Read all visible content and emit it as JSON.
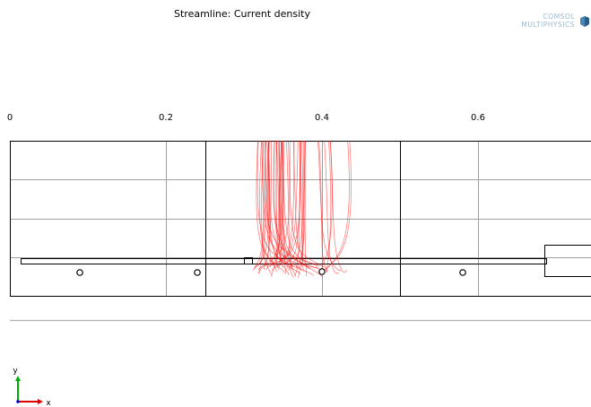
{
  "plot": {
    "title": "Streamline: Current density"
  },
  "logo": {
    "line1": "COMSOL",
    "line2": "MULTIPHYSICS"
  },
  "axis": {
    "x_ticks": [
      "0",
      "0.2",
      "0.4",
      "0.6"
    ]
  },
  "triad": {
    "y_label": "y",
    "x_label": "x"
  },
  "colors": {
    "streamline": "#ff0000",
    "edge": "#000000",
    "grid": "#a0a0a0",
    "separator": "#b0b0b0",
    "triad_y": "#00aa00",
    "triad_x": "#dd0000",
    "triad_z": "#0000cc",
    "logo": "#9ab8cf"
  },
  "chart_data": {
    "type": "streamline",
    "title": "Streamline: Current density",
    "x_ticks": [
      0,
      0.2,
      0.4,
      0.6
    ],
    "xlim": [
      0,
      0.74
    ]
  }
}
